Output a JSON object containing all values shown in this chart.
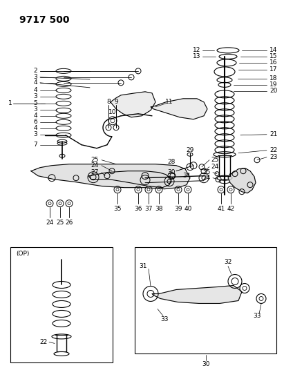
{
  "title": "9717 500",
  "bg_color": "#ffffff",
  "lc": "#000000",
  "lfs": 6.5,
  "title_fs": 10,
  "fig_w": 4.11,
  "fig_h": 5.33,
  "dpi": 100,
  "left_labels": [
    [
      "2",
      55,
      103
    ],
    [
      "3",
      55,
      112
    ],
    [
      "4",
      55,
      120
    ],
    [
      "4",
      55,
      132
    ],
    [
      "3",
      55,
      141
    ],
    [
      "5",
      55,
      150
    ],
    [
      "3",
      55,
      159
    ],
    [
      "4",
      55,
      168
    ],
    [
      "6",
      55,
      177
    ],
    [
      "4",
      55,
      186
    ],
    [
      "3",
      55,
      195
    ]
  ],
  "right_labels": [
    [
      "14",
      390,
      75
    ],
    [
      "15",
      390,
      84
    ],
    [
      "16",
      390,
      93
    ],
    [
      "17",
      390,
      102
    ],
    [
      "18",
      390,
      112
    ],
    [
      "19",
      390,
      121
    ],
    [
      "20",
      390,
      130
    ],
    [
      "21",
      390,
      195
    ],
    [
      "22",
      390,
      210
    ],
    [
      "23",
      390,
      224
    ]
  ],
  "left_line_labels": [
    [
      "12",
      290,
      75
    ],
    [
      "13",
      290,
      84
    ]
  ],
  "bottom_bolts": [
    [
      170,
      275,
      "35"
    ],
    [
      200,
      275,
      "36"
    ],
    [
      215,
      275,
      "37"
    ],
    [
      230,
      275,
      "38"
    ],
    [
      258,
      275,
      "39"
    ],
    [
      272,
      275,
      "40"
    ],
    [
      320,
      275,
      "41"
    ],
    [
      334,
      275,
      "42"
    ]
  ],
  "standalone_bolts": [
    [
      72,
      295,
      "24"
    ],
    [
      87,
      295,
      "25"
    ],
    [
      100,
      295,
      "26"
    ]
  ]
}
